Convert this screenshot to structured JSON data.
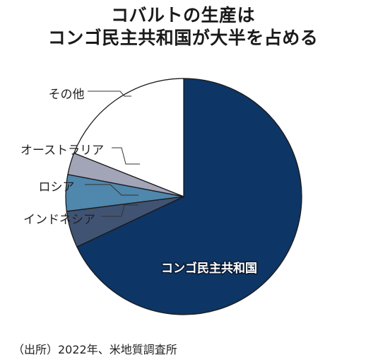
{
  "header": {
    "title_line1": "コバルトの生産は",
    "title_line2": "コンゴ民主共和国が大半を占める"
  },
  "chart_data": {
    "type": "pie",
    "slices": [
      {
        "label": "コンゴ民主共和国",
        "value": 68,
        "color": "#0d3565"
      },
      {
        "label": "インドネシア",
        "value": 5,
        "color": "#415373"
      },
      {
        "label": "ロシア",
        "value": 5,
        "color": "#4f87ad"
      },
      {
        "label": "オーストラリア",
        "value": 3,
        "color": "#a2a4b8"
      },
      {
        "label": "その他",
        "value": 19,
        "color": "#ffffff"
      }
    ]
  },
  "footer": {
    "source": "（出所）2022年、米地質調査所"
  }
}
